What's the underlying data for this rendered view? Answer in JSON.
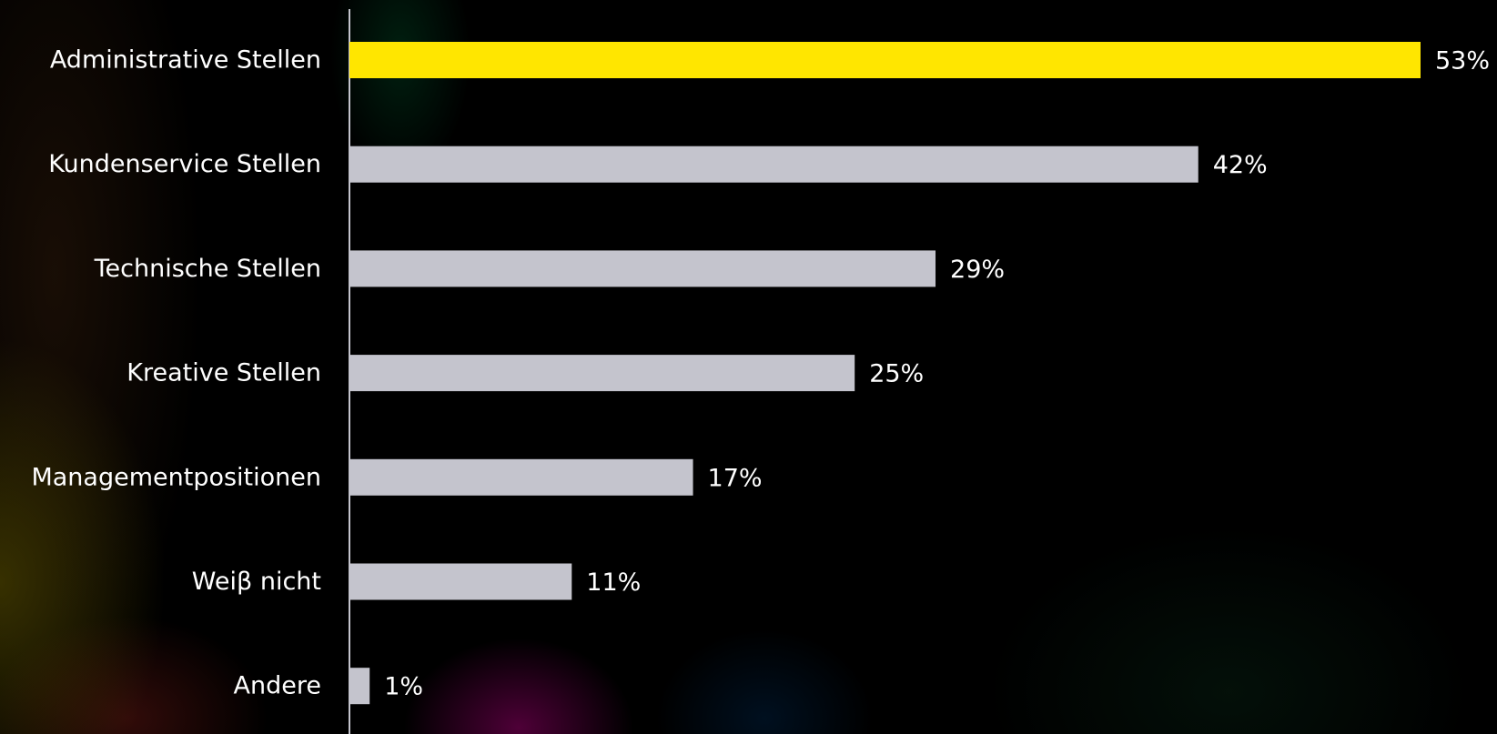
{
  "chart_data": {
    "type": "bar",
    "orientation": "horizontal",
    "categories": [
      "Administrative Stellen",
      "Kundenservice Stellen",
      "Technische Stellen",
      "Kreative Stellen",
      "Managementpositionen",
      "Weiβ nicht",
      "Andere"
    ],
    "values": [
      53,
      42,
      29,
      25,
      17,
      11,
      1
    ],
    "value_labels": [
      "53%",
      "42%",
      "29%",
      "25%",
      "17%",
      "11%",
      "1%"
    ],
    "unit": "%",
    "xlim": [
      0,
      53
    ],
    "highlight_index": 0,
    "grid": false,
    "legend": "none",
    "title": "",
    "xlabel": "",
    "ylabel": ""
  },
  "colors": {
    "highlight": "#FFE600",
    "bar": "#C4C4CD",
    "axis": "#C4C4CD",
    "text": "#FFFFFF",
    "background": "#000000"
  }
}
